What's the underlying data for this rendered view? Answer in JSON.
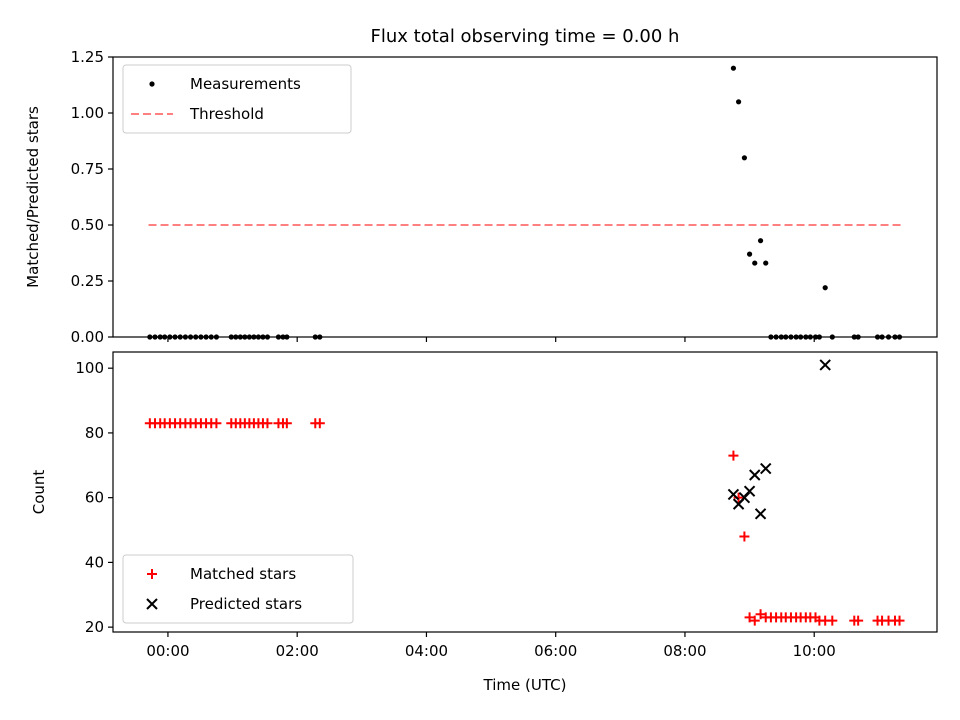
{
  "chart_data": {
    "title": "Flux total observing time = 0.00 h",
    "xlabel": "Time (UTC)",
    "xlim_hours": [
      -0.85,
      11.9
    ],
    "xticks": [
      {
        "value": 0,
        "label": "00:00"
      },
      {
        "value": 2,
        "label": "02:00"
      },
      {
        "value": 4,
        "label": "04:00"
      },
      {
        "value": 6,
        "label": "06:00"
      },
      {
        "value": 8,
        "label": "08:00"
      },
      {
        "value": 10,
        "label": "10:00"
      }
    ],
    "panels": [
      {
        "type": "scatter",
        "ylabel": "Matched/Predicted stars",
        "ylim": [
          0,
          1.25
        ],
        "yticks": [
          "0.00",
          "0.25",
          "0.50",
          "0.75",
          "1.00",
          "1.25"
        ],
        "legend": {
          "location": "top-left",
          "entries": [
            "Measurements",
            "Threshold"
          ]
        },
        "threshold": {
          "name": "Threshold",
          "value": 0.5,
          "x_range": [
            -0.3,
            11.35
          ],
          "color": "#ff8080"
        },
        "series": [
          {
            "name": "Measurements",
            "color": "#000000",
            "x": [
              -0.28,
              -0.2,
              -0.12,
              -0.05,
              0.03,
              0.11,
              0.19,
              0.27,
              0.35,
              0.43,
              0.51,
              0.59,
              0.67,
              0.75,
              0.98,
              1.05,
              1.12,
              1.19,
              1.26,
              1.33,
              1.4,
              1.47,
              1.54,
              1.71,
              1.78,
              1.84,
              2.28,
              2.35,
              8.75,
              8.83,
              8.92,
              9.0,
              9.08,
              9.17,
              9.25,
              9.33,
              9.41,
              9.49,
              9.56,
              9.64,
              9.72,
              9.79,
              9.87,
              9.94,
              10.02,
              10.08,
              10.17,
              10.28,
              10.62,
              10.68,
              10.98,
              11.05,
              11.15,
              11.25,
              11.32
            ],
            "y": [
              0,
              0,
              0,
              0,
              0,
              0,
              0,
              0,
              0,
              0,
              0,
              0,
              0,
              0,
              0,
              0,
              0,
              0,
              0,
              0,
              0,
              0,
              0,
              0,
              0,
              0,
              0,
              0,
              1.2,
              1.05,
              0.8,
              0.37,
              0.33,
              0.43,
              0.33,
              0,
              0,
              0,
              0,
              0,
              0,
              0,
              0,
              0,
              0,
              0,
              0.22,
              0,
              0,
              0,
              0,
              0,
              0,
              0,
              0
            ]
          }
        ]
      },
      {
        "type": "scatter",
        "ylabel": "Count",
        "ylim": [
          18.5,
          105
        ],
        "yticks": [
          "20",
          "40",
          "60",
          "80",
          "100"
        ],
        "legend": {
          "location": "bottom-left",
          "entries": [
            "Matched stars",
            "Predicted stars"
          ]
        },
        "series": [
          {
            "name": "Matched stars",
            "marker": "plus",
            "color": "#ff0000",
            "x": [
              -0.28,
              -0.2,
              -0.12,
              -0.05,
              0.03,
              0.11,
              0.19,
              0.27,
              0.35,
              0.43,
              0.51,
              0.59,
              0.67,
              0.75,
              0.98,
              1.05,
              1.12,
              1.19,
              1.26,
              1.33,
              1.4,
              1.47,
              1.54,
              1.71,
              1.78,
              1.84,
              2.28,
              2.35,
              8.75,
              8.83,
              8.92,
              9.0,
              9.08,
              9.17,
              9.25,
              9.33,
              9.41,
              9.49,
              9.56,
              9.64,
              9.72,
              9.79,
              9.87,
              9.94,
              10.02,
              10.08,
              10.17,
              10.28,
              10.62,
              10.68,
              10.98,
              11.05,
              11.15,
              11.25,
              11.32
            ],
            "y": [
              83,
              83,
              83,
              83,
              83,
              83,
              83,
              83,
              83,
              83,
              83,
              83,
              83,
              83,
              83,
              83,
              83,
              83,
              83,
              83,
              83,
              83,
              83,
              83,
              83,
              83,
              83,
              83,
              73,
              60,
              48,
              23,
              22,
              24,
              23,
              23,
              23,
              23,
              23,
              23,
              23,
              23,
              23,
              23,
              23,
              22,
              22,
              22,
              22,
              22,
              22,
              22,
              22,
              22,
              22
            ]
          },
          {
            "name": "Predicted stars",
            "marker": "x",
            "color": "#000000",
            "x": [
              8.75,
              8.83,
              8.92,
              9.0,
              9.08,
              9.17,
              9.25,
              10.17
            ],
            "y": [
              61,
              58,
              60,
              62,
              67,
              55,
              69,
              101
            ]
          }
        ]
      }
    ]
  }
}
